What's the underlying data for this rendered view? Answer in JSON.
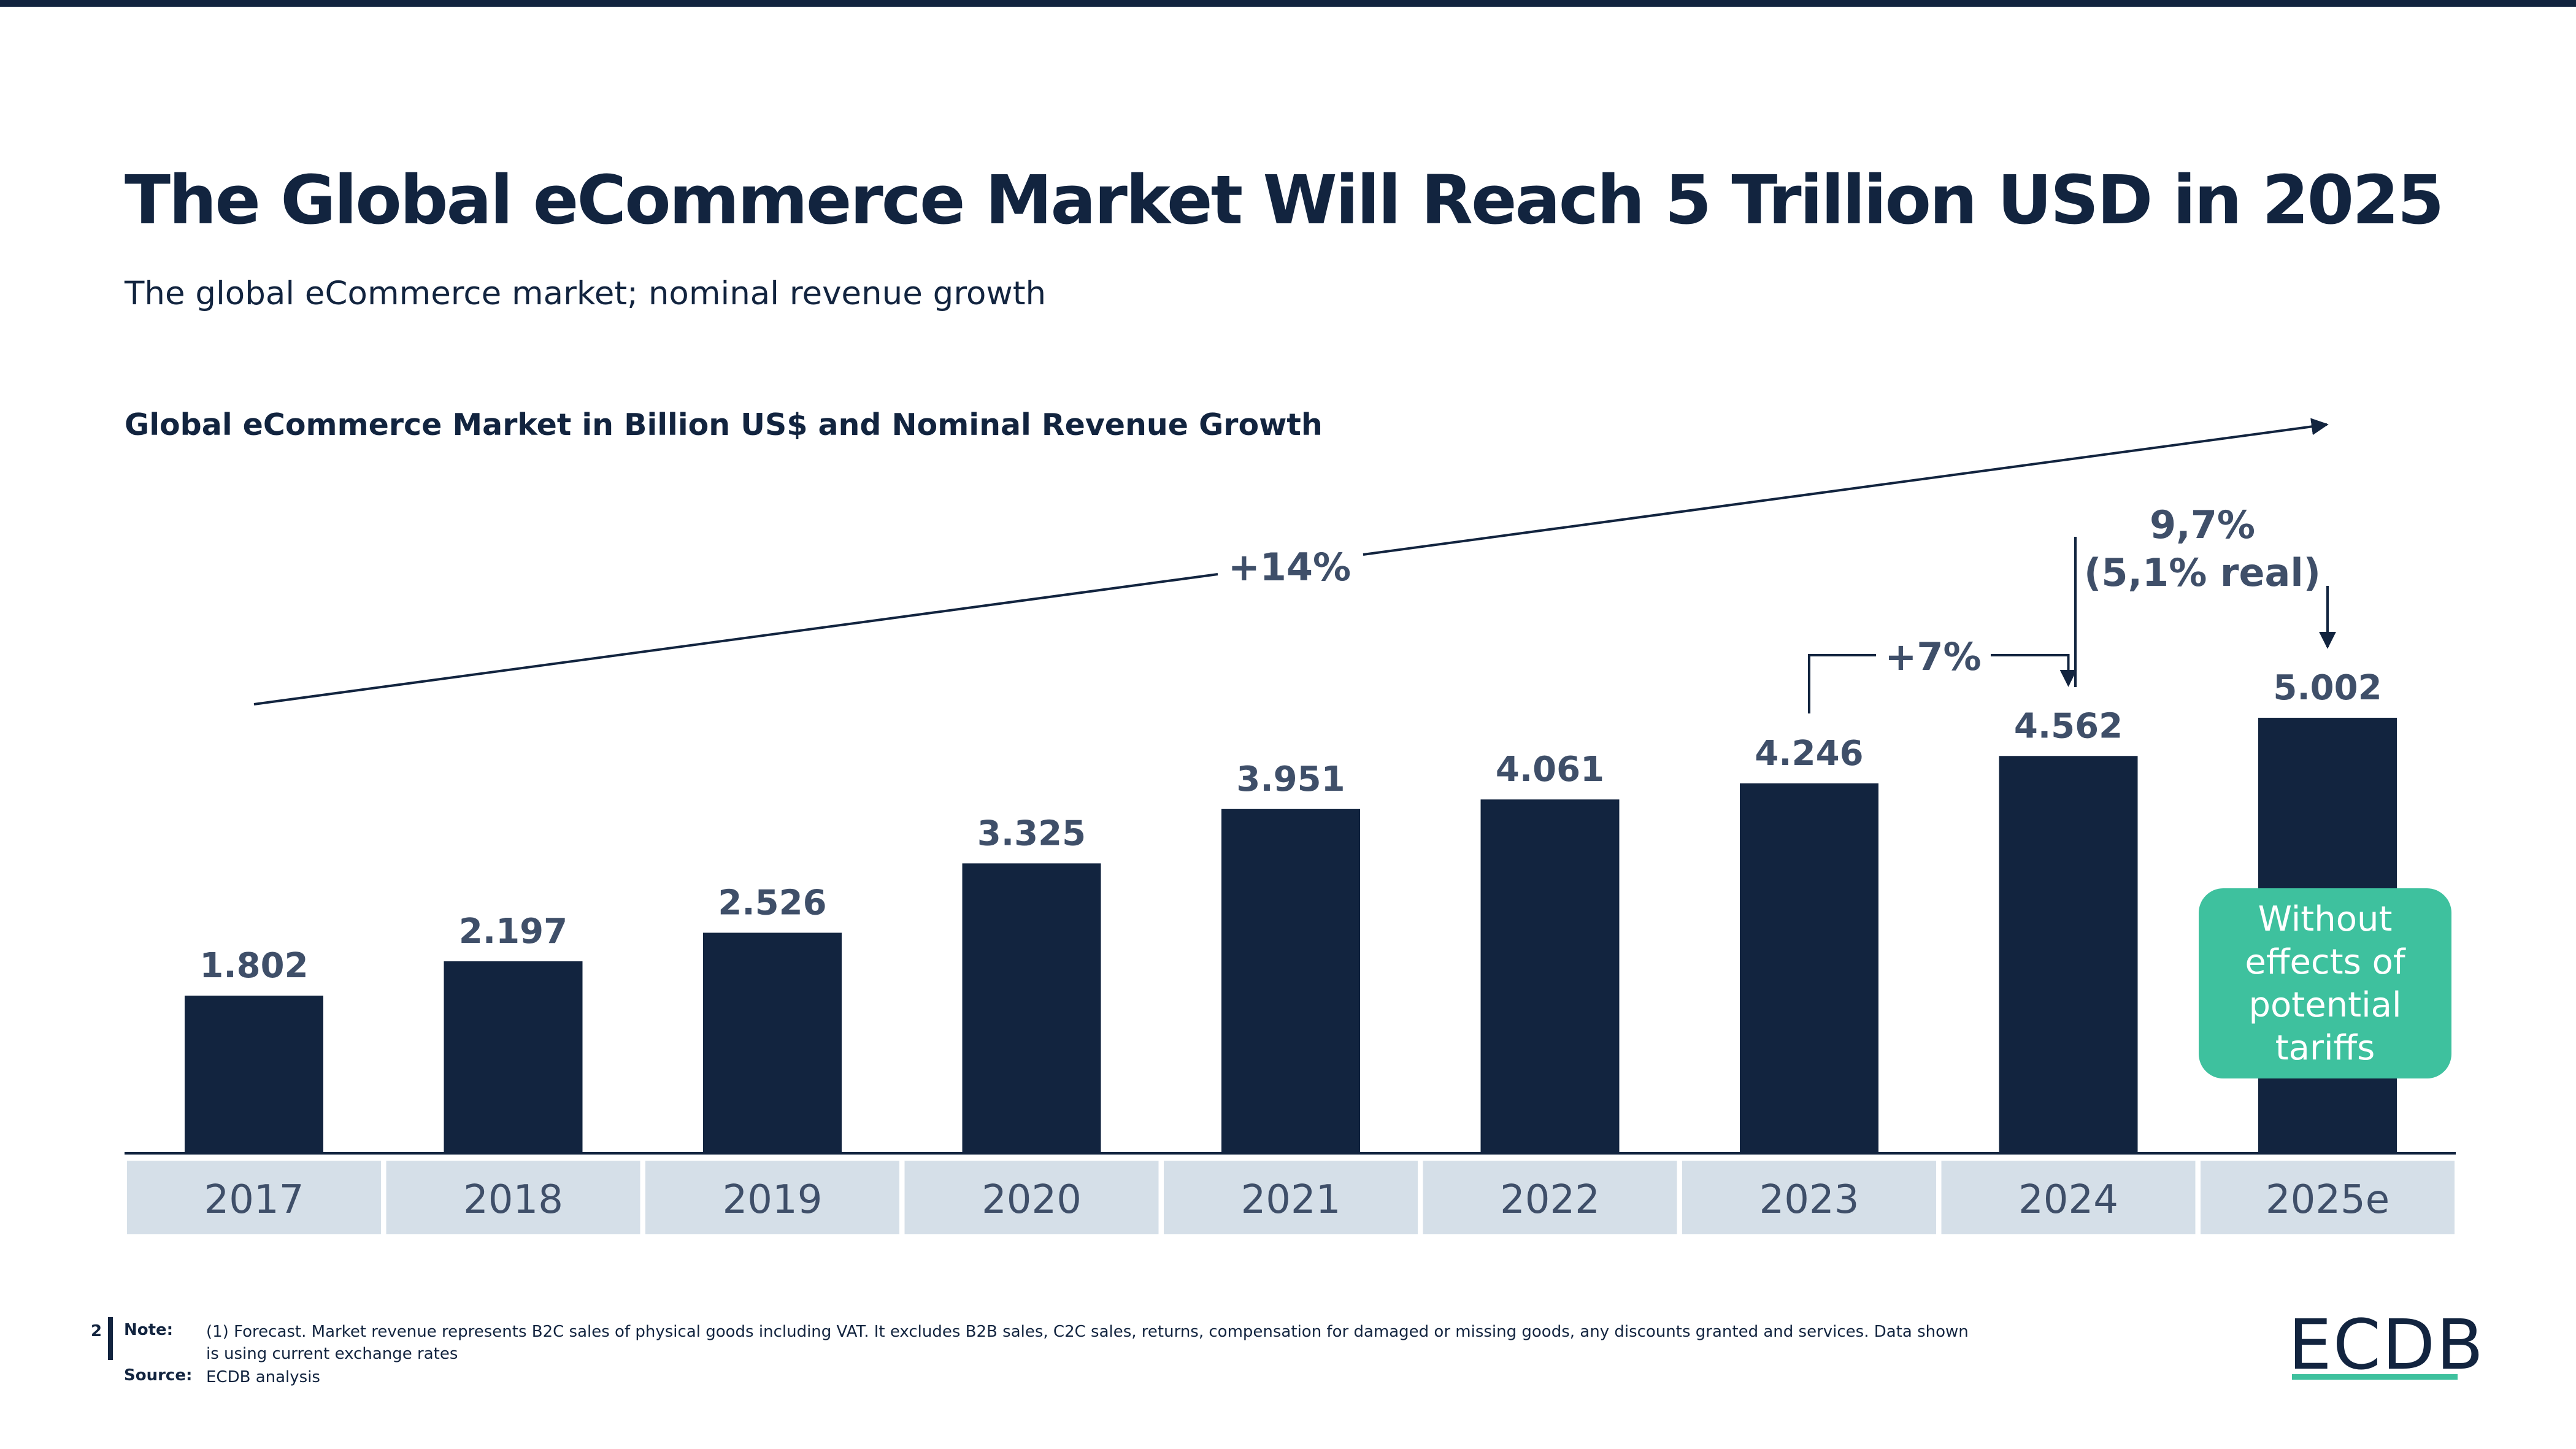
{
  "header": {
    "title": "The Global eCommerce Market Will Reach 5 Trillion USD in 2025",
    "subtitle": "The global eCommerce market; nominal revenue growth"
  },
  "colors": {
    "brand_dark": "#12243f",
    "accent_green": "#3ec19e",
    "label_gray": "#3f4f69",
    "category_band": "#d5dfe8"
  },
  "chart_data": {
    "type": "bar",
    "title": "Global eCommerce Market in Billion US$ and Nominal Revenue Growth",
    "categories": [
      "2017",
      "2018",
      "2019",
      "2020",
      "2021",
      "2022",
      "2023",
      "2024",
      "2025e"
    ],
    "values": [
      1802,
      2197,
      2526,
      3325,
      3951,
      4061,
      4246,
      4562,
      5002
    ],
    "value_labels": [
      "1.802",
      "2.197",
      "2.526",
      "3.325",
      "3.951",
      "4.061",
      "4.246",
      "4.562",
      "5.002"
    ],
    "ylim": [
      0,
      5002
    ],
    "grid": false,
    "annotations": {
      "cagr_label": "+14%",
      "yoy_2024_label": "+7%",
      "yoy_2025_label_line1": "9,7%",
      "yoy_2025_label_line2": "(5,1% real)",
      "callout_text": [
        "Without",
        "effects of",
        "potential",
        "tariffs"
      ]
    }
  },
  "footer": {
    "page_number": "2",
    "note_label": "Note:",
    "note_text": "(1) Forecast. Market revenue represents B2C sales of physical goods including VAT. It excludes B2B sales, C2C sales, returns, compensation for damaged or missing goods, any discounts granted and services. Data shown is using current exchange rates",
    "source_label": "Source:",
    "source_text": "ECDB analysis",
    "logo_text": "ECDB"
  }
}
